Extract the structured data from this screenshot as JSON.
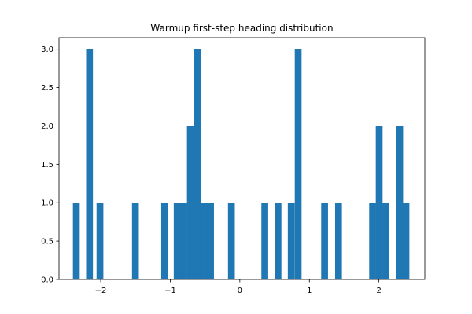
{
  "chart_data": {
    "type": "bar",
    "title": "Warmup first-step heading distribution",
    "xlabel": "",
    "ylabel": "",
    "xlim": [
      -2.6,
      2.66
    ],
    "ylim": [
      0,
      3.15
    ],
    "grid": false,
    "bar_color": "#1f77b4",
    "bin_width": 0.098,
    "x_ticks": [
      -2,
      -1,
      0,
      1,
      2
    ],
    "x_tick_labels": [
      "−2",
      "−1",
      "0",
      "1",
      "2"
    ],
    "y_ticks": [
      0,
      0.5,
      1,
      1.5,
      2,
      2.5,
      3
    ],
    "y_tick_labels": [
      "0.0",
      "0.5",
      "1.0",
      "1.5",
      "2.0",
      "2.5",
      "3.0"
    ],
    "bins": [
      {
        "x0": -2.4,
        "count": 1
      },
      {
        "x0": -2.21,
        "count": 3
      },
      {
        "x0": -2.06,
        "count": 1
      },
      {
        "x0": -1.55,
        "count": 1
      },
      {
        "x0": -1.13,
        "count": 1
      },
      {
        "x0": -0.95,
        "count": 1
      },
      {
        "x0": -0.855,
        "count": 1
      },
      {
        "x0": -0.76,
        "count": 2
      },
      {
        "x0": -0.66,
        "count": 3
      },
      {
        "x0": -0.565,
        "count": 1
      },
      {
        "x0": -0.47,
        "count": 1
      },
      {
        "x0": -0.17,
        "count": 1
      },
      {
        "x0": 0.31,
        "count": 1
      },
      {
        "x0": 0.5,
        "count": 1
      },
      {
        "x0": 0.69,
        "count": 1
      },
      {
        "x0": 0.79,
        "count": 3
      },
      {
        "x0": 1.17,
        "count": 1
      },
      {
        "x0": 1.37,
        "count": 1
      },
      {
        "x0": 1.86,
        "count": 1
      },
      {
        "x0": 1.955,
        "count": 2
      },
      {
        "x0": 2.05,
        "count": 1
      },
      {
        "x0": 2.25,
        "count": 2
      },
      {
        "x0": 2.34,
        "count": 1
      }
    ]
  }
}
